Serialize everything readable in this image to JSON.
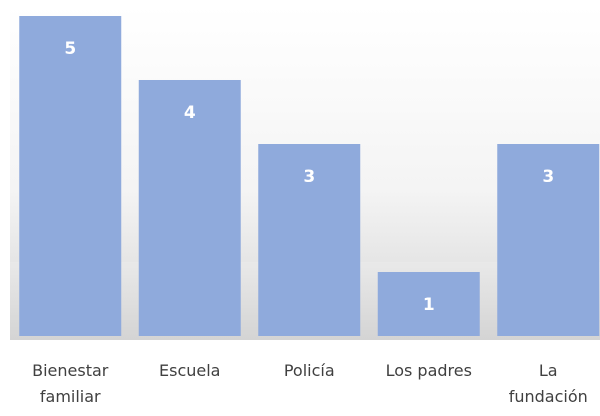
{
  "chart_data": {
    "type": "bar",
    "title": "",
    "xlabel": "",
    "ylabel": "",
    "categories": [
      [
        "Bienestar",
        "familiar"
      ],
      [
        "Escuela"
      ],
      [
        "Policía"
      ],
      [
        "Los padres"
      ],
      [
        "La",
        "fundación"
      ]
    ],
    "values": [
      5,
      4,
      3,
      1,
      3
    ],
    "ylim": [
      0,
      5
    ],
    "grid": false,
    "legend": "none",
    "data_labels": true,
    "colors": {
      "bar": "#8faadc",
      "data_label": "#ffffff",
      "category_label": "#404040",
      "background_top": "#ffffff",
      "background_bottom": "#d9d9d9"
    }
  }
}
